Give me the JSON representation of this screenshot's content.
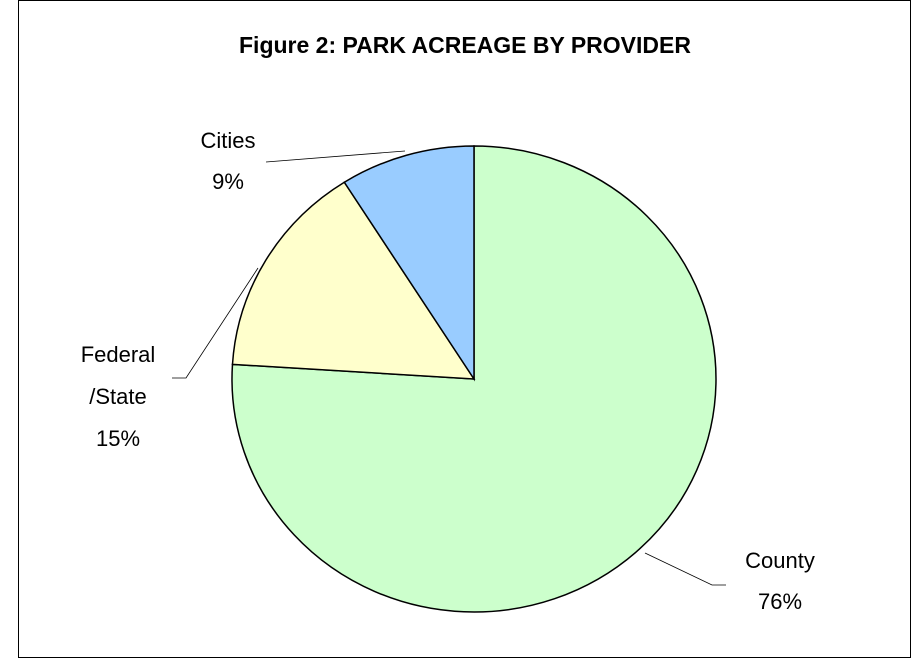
{
  "chart_data": {
    "type": "pie",
    "title": "Figure 2: PARK ACREAGE BY PROVIDER",
    "categories": [
      "County",
      "Federal/State",
      "Cities"
    ],
    "values": [
      76,
      15,
      9
    ],
    "value_labels": [
      "76%",
      "15%",
      "9%"
    ],
    "colors": [
      "#ccffcc",
      "#ffffcc",
      "#99ccff"
    ]
  }
}
